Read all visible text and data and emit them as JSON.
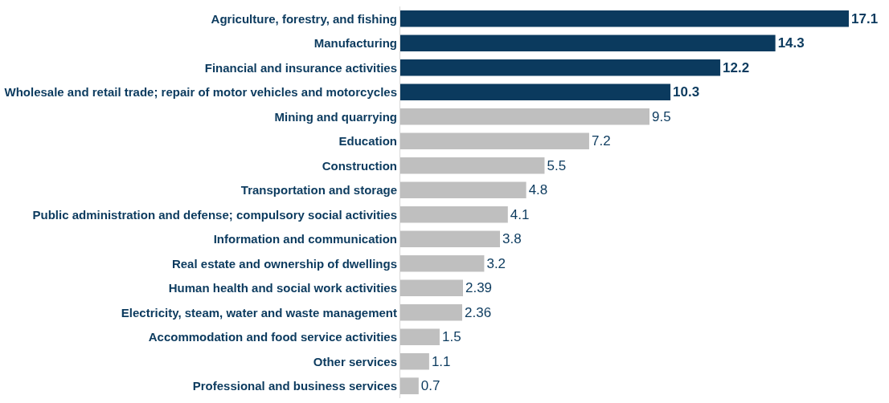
{
  "chart_data": {
    "type": "bar",
    "orientation": "horizontal",
    "data_labels": true,
    "legend": false,
    "categories": [
      "Agriculture, forestry, and fishing",
      "Manufacturing",
      "Financial and insurance activities",
      "Wholesale and retail trade; repair of motor vehicles and motorcycles",
      "Mining and quarrying",
      "Education",
      "Construction",
      "Transportation and storage",
      "Public administration and defense; compulsory social activities",
      "Information and communication",
      "Real estate and ownership of dwellings",
      "Human health and social work activities",
      "Electricity, steam, water and waste management",
      "Accommodation and food service activities",
      "Other services",
      "Professional and business services"
    ],
    "values": [
      17.1,
      14.3,
      12.2,
      10.3,
      9.5,
      7.2,
      5.5,
      4.8,
      4.1,
      3.8,
      3.2,
      2.39,
      2.36,
      1.5,
      1.1,
      0.7
    ],
    "colors": [
      "#0b3a5e",
      "#0b3a5e",
      "#0b3a5e",
      "#0b3a5e",
      "#bfbfbf",
      "#bfbfbf",
      "#bfbfbf",
      "#bfbfbf",
      "#bfbfbf",
      "#bfbfbf",
      "#bfbfbf",
      "#bfbfbf",
      "#bfbfbf",
      "#bfbfbf",
      "#bfbfbf",
      "#bfbfbf"
    ]
  }
}
